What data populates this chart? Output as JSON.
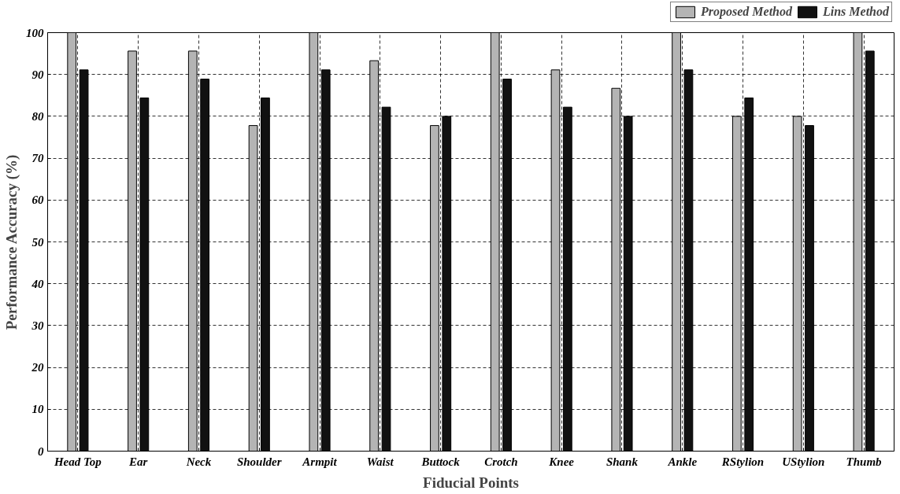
{
  "chart_data": {
    "type": "bar",
    "xlabel": "Fiducial Points",
    "ylabel": "Performance Accuracy (%)",
    "categories": [
      "Head Top",
      "Ear",
      "Neck",
      "Shoulder",
      "Armpit",
      "Waist",
      "Buttock",
      "Crotch",
      "Knee",
      "Shank",
      "Ankle",
      "RStylion",
      "UStylion",
      "Thumb"
    ],
    "series": [
      {
        "name": "Proposed Method",
        "color": "#b4b4b4",
        "values": [
          100,
          95.6,
          95.6,
          77.8,
          100,
          93.3,
          77.8,
          100,
          91.1,
          86.7,
          100,
          80,
          80,
          100
        ]
      },
      {
        "name": "Lins Method",
        "color": "#111111",
        "values": [
          91.1,
          84.4,
          88.9,
          84.4,
          91.1,
          82.2,
          80,
          88.9,
          82.2,
          80,
          91.1,
          84.4,
          77.8,
          95.6
        ]
      }
    ],
    "ylim": [
      0,
      100
    ],
    "yticks": [
      0,
      10,
      20,
      30,
      40,
      50,
      60,
      70,
      80,
      90,
      100
    ],
    "grid": true,
    "legend": "top right"
  }
}
